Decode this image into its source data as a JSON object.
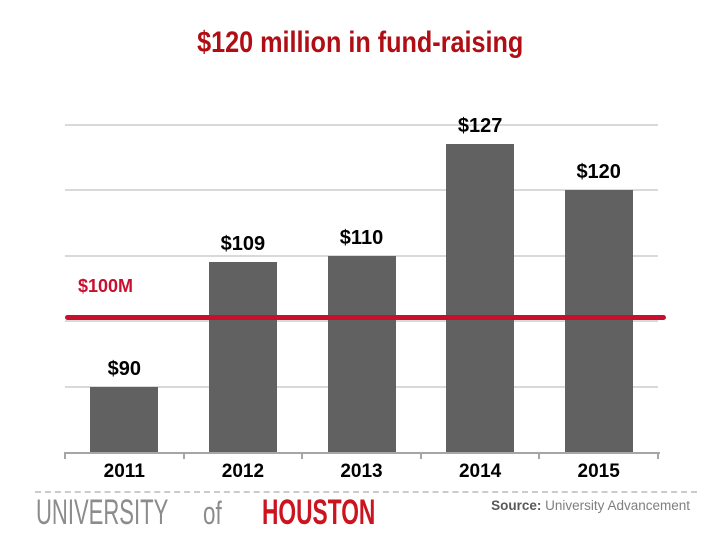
{
  "slide": {
    "title": "$120 million in fund-raising",
    "title_color": "#B00E14"
  },
  "chart_data": {
    "type": "bar",
    "title": "$120 million in fund-raising",
    "categories": [
      "2011",
      "2012",
      "2013",
      "2014",
      "2015"
    ],
    "values": [
      90,
      109,
      110,
      127,
      120
    ],
    "bar_labels": [
      "$90",
      "$109",
      "$110",
      "$127",
      "$120"
    ],
    "xlabel": "",
    "ylabel": "",
    "ylim": [
      80,
      135
    ],
    "gridline_values": [
      90,
      100,
      110,
      120,
      130
    ],
    "grid": true,
    "legend": false,
    "reference_line": {
      "value": 100,
      "label": "$100M"
    },
    "colors": {
      "bar": "#616161",
      "gridline": "#D9D9D9",
      "axis": "#A6A6A6",
      "reference_line": "#C8102E",
      "data_label": "#000000"
    }
  },
  "footer": {
    "logo": {
      "university": "UNIVERSITY",
      "of": "of",
      "houston": "HOUSTON",
      "gray": "#8C8C8C",
      "red": "#CC1420"
    },
    "source_label": "Source:",
    "source_value": "University Advancement"
  }
}
